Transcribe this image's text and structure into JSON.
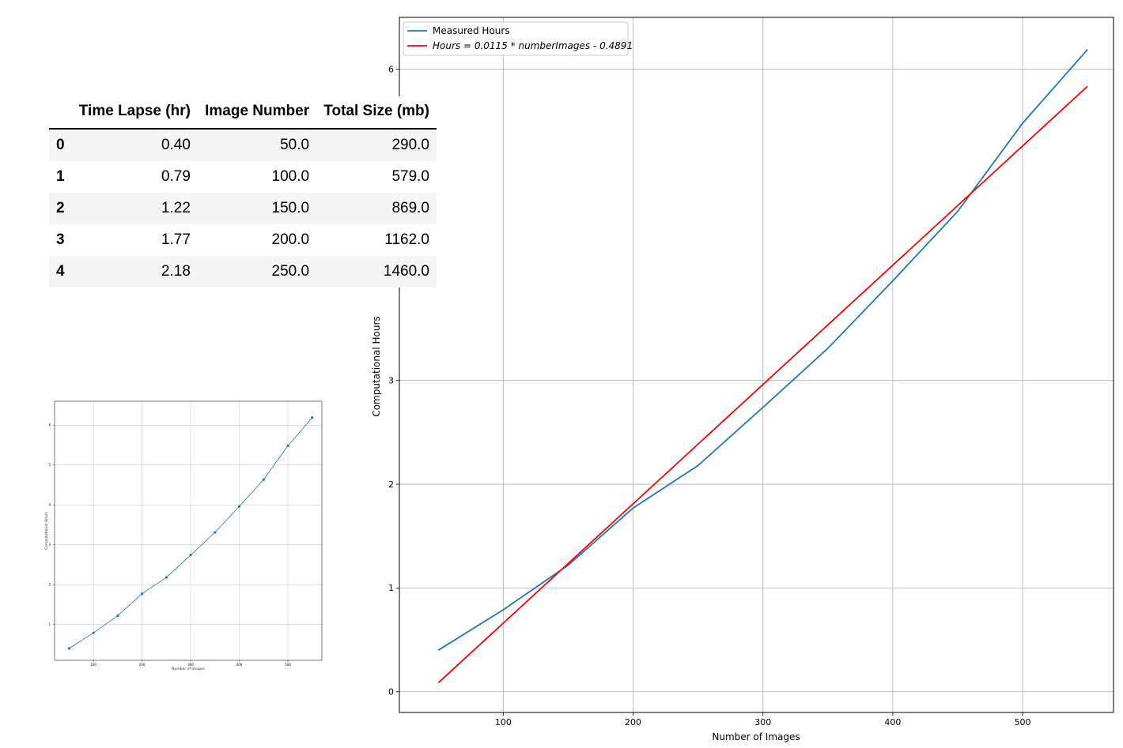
{
  "table": {
    "columns": [
      "",
      "Time Lapse (hr)",
      "Image Number",
      "Total Size (mb)"
    ],
    "rows": [
      [
        "0",
        "0.40",
        "50.0",
        "290.0"
      ],
      [
        "1",
        "0.79",
        "100.0",
        "579.0"
      ],
      [
        "2",
        "1.22",
        "150.0",
        "869.0"
      ],
      [
        "3",
        "1.77",
        "200.0",
        "1162.0"
      ],
      [
        "4",
        "2.18",
        "250.0",
        "1460.0"
      ]
    ]
  },
  "chart_data": [
    {
      "type": "line",
      "xlabel": "Number of Images",
      "ylabel": "Computational Hours",
      "xlim": [
        20,
        570
      ],
      "ylim": [
        -0.2,
        6.5
      ],
      "xticks": [
        100,
        200,
        300,
        400,
        500
      ],
      "yticks": [
        0,
        1,
        2,
        3,
        6
      ],
      "grid": true,
      "legend_position": "top-left",
      "series": [
        {
          "name": "Measured Hours",
          "color": "#1f77b4",
          "x": [
            50,
            100,
            150,
            200,
            250,
            300,
            350,
            400,
            450,
            500,
            550
          ],
          "y": [
            0.4,
            0.79,
            1.22,
            1.77,
            2.18,
            2.74,
            3.31,
            3.96,
            4.63,
            5.48,
            6.19
          ]
        },
        {
          "name": "Hours = 0.0115 * numberImages - 0.4891",
          "color": "#ff0000",
          "x": [
            50,
            550
          ],
          "y": [
            0.0859,
            5.8359
          ]
        }
      ]
    },
    {
      "type": "line",
      "xlabel": "Number of Images",
      "ylabel": "Computational Hours",
      "xlim": [
        20,
        570
      ],
      "ylim": [
        0.1,
        6.6
      ],
      "xticks": [
        100,
        200,
        300,
        400,
        500
      ],
      "yticks": [
        1,
        2,
        3,
        4,
        5,
        6
      ],
      "grid": true,
      "markers": true,
      "series": [
        {
          "color": "#1f77b4",
          "x": [
            50,
            100,
            150,
            200,
            250,
            300,
            350,
            400,
            450,
            500,
            550
          ],
          "y": [
            0.4,
            0.79,
            1.22,
            1.77,
            2.18,
            2.74,
            3.31,
            3.96,
            4.63,
            5.48,
            6.19
          ]
        }
      ]
    }
  ]
}
